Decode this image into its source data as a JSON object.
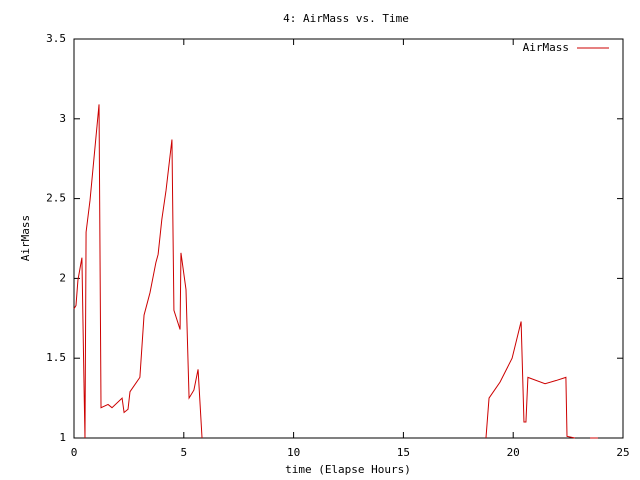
{
  "chart_data": {
    "type": "line",
    "title": "4: AirMass vs. Time",
    "xlabel": "time (Elapse Hours)",
    "ylabel": "AirMass",
    "x": [
      0,
      0.09,
      0.18,
      0.36,
      0.46,
      0.5,
      0.55,
      0.73,
      1.14,
      1.23,
      1.55,
      1.73,
      2.19,
      2.28,
      2.46,
      2.55,
      3.0,
      3.19,
      3.46,
      3.73,
      3.83,
      4.0,
      4.19,
      4.46,
      4.55,
      4.83,
      4.87,
      5.1,
      5.24,
      5.46,
      5.65,
      5.83,
      12,
      18.76,
      18.9,
      19.4,
      19.95,
      20.36,
      20.49,
      20.58,
      20.67,
      21.45,
      21.95,
      22.4,
      22.45,
      22.81,
      23.2,
      23.5,
      23.86
    ],
    "series": [
      {
        "name": "AirMass",
        "color": "#cc0000",
        "values": [
          1.81,
          1.83,
          1.99,
          2.13,
          1.3,
          1.0,
          2.29,
          2.49,
          3.09,
          1.19,
          1.21,
          1.19,
          1.25,
          1.16,
          1.18,
          1.29,
          1.38,
          1.77,
          1.91,
          2.1,
          2.15,
          2.37,
          2.55,
          2.87,
          1.8,
          1.68,
          2.16,
          1.93,
          1.25,
          1.3,
          1.43,
          1.0,
          null,
          1.0,
          1.25,
          1.35,
          1.5,
          1.73,
          1.1,
          1.1,
          1.38,
          1.34,
          1.36,
          1.38,
          1.01,
          1.0,
          null,
          1.0,
          1.0
        ]
      }
    ],
    "xlim": [
      0,
      25
    ],
    "xticks": [
      0,
      5,
      10,
      15,
      20,
      25
    ],
    "ylim": [
      1,
      3.5
    ],
    "yticks": [
      1,
      1.5,
      2,
      2.5,
      3,
      3.5
    ],
    "legend": "top-right"
  }
}
